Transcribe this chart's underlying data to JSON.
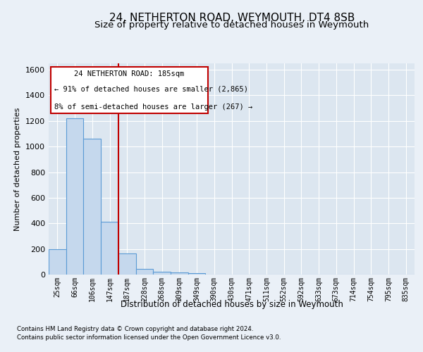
{
  "title1": "24, NETHERTON ROAD, WEYMOUTH, DT4 8SB",
  "title2": "Size of property relative to detached houses in Weymouth",
  "xlabel": "Distribution of detached houses by size in Weymouth",
  "ylabel": "Number of detached properties",
  "footer1": "Contains HM Land Registry data © Crown copyright and database right 2024.",
  "footer2": "Contains public sector information licensed under the Open Government Licence v3.0.",
  "categories": [
    "25sqm",
    "66sqm",
    "106sqm",
    "147sqm",
    "187sqm",
    "228sqm",
    "268sqm",
    "309sqm",
    "349sqm",
    "390sqm",
    "430sqm",
    "471sqm",
    "511sqm",
    "552sqm",
    "592sqm",
    "633sqm",
    "673sqm",
    "714sqm",
    "754sqm",
    "795sqm",
    "835sqm"
  ],
  "values": [
    200,
    1220,
    1060,
    415,
    165,
    45,
    20,
    15,
    10,
    0,
    0,
    0,
    0,
    0,
    0,
    0,
    0,
    0,
    0,
    0,
    0
  ],
  "bar_color": "#c5d8ed",
  "bar_edge_color": "#5b9bd5",
  "annotation_line1": "24 NETHERTON ROAD: 185sqm",
  "annotation_line2": "← 91% of detached houses are smaller (2,865)",
  "annotation_line3": "8% of semi-detached houses are larger (267) →",
  "ylim": [
    0,
    1650
  ],
  "yticks": [
    0,
    200,
    400,
    600,
    800,
    1000,
    1200,
    1400,
    1600
  ],
  "bg_color": "#eaf0f7",
  "plot_bg": "#dce6f0",
  "grid_color": "#ffffff",
  "title_fontsize": 11,
  "subtitle_fontsize": 9.5,
  "red_line_x": 3.5
}
